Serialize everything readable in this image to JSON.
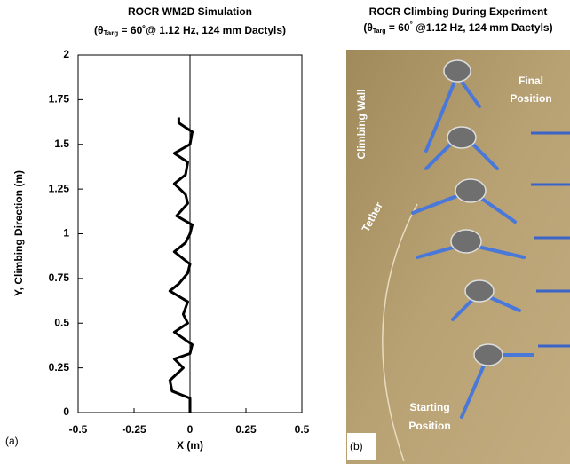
{
  "chart_data": {
    "type": "line",
    "title": "ROCR WM2D Simulation",
    "subtitle": [
      "(θ",
      "Targ",
      " = 60˚@ 1.12 Hz, 124 mm Dactyls)"
    ],
    "x_label": "X (m)",
    "y_label": "Y, Climbing Direction (m)",
    "xlim": [
      -0.5,
      0.5
    ],
    "xticks": [
      -0.5,
      -0.25,
      0,
      0.25,
      0.5
    ],
    "ylim": [
      0,
      2
    ],
    "yticks": [
      0,
      0.25,
      0.5,
      0.75,
      1,
      1.25,
      1.5,
      1.75,
      2
    ],
    "series": [
      {
        "color": "#000000",
        "x": [
          0,
          0,
          -0.08,
          -0.09,
          -0.03,
          -0.07,
          0,
          0.01,
          -0.07,
          -0.01,
          -0.03,
          -0.01,
          -0.09,
          -0.05,
          -0.01,
          0,
          -0.07,
          -0.02,
          0,
          0.01,
          -0.06,
          -0.01,
          -0.02,
          -0.07,
          -0.02,
          -0.01,
          -0.07,
          0,
          0.01,
          -0.05,
          -0.05
        ],
        "values": [
          0,
          0.08,
          0.12,
          0.18,
          0.25,
          0.3,
          0.33,
          0.38,
          0.45,
          0.5,
          0.55,
          0.62,
          0.68,
          0.72,
          0.78,
          0.83,
          0.9,
          0.95,
          1.0,
          1.05,
          1.1,
          1.17,
          1.22,
          1.28,
          1.33,
          1.4,
          1.45,
          1.5,
          1.57,
          1.62,
          1.65
        ]
      }
    ],
    "panel_label": "(a)"
  },
  "photo": {
    "title": "ROCR Climbing During Experiment",
    "subtitle": [
      "(θ",
      "Targ",
      " = 60",
      "°",
      " @1.12 Hz, 124 mm Dactyls)"
    ],
    "climbing_wall": "Climbing Wall",
    "tether": "Tether",
    "final_position": [
      "Final",
      "Position"
    ],
    "starting_position": [
      "Starting",
      "Position"
    ],
    "panel_label": "(b)"
  }
}
